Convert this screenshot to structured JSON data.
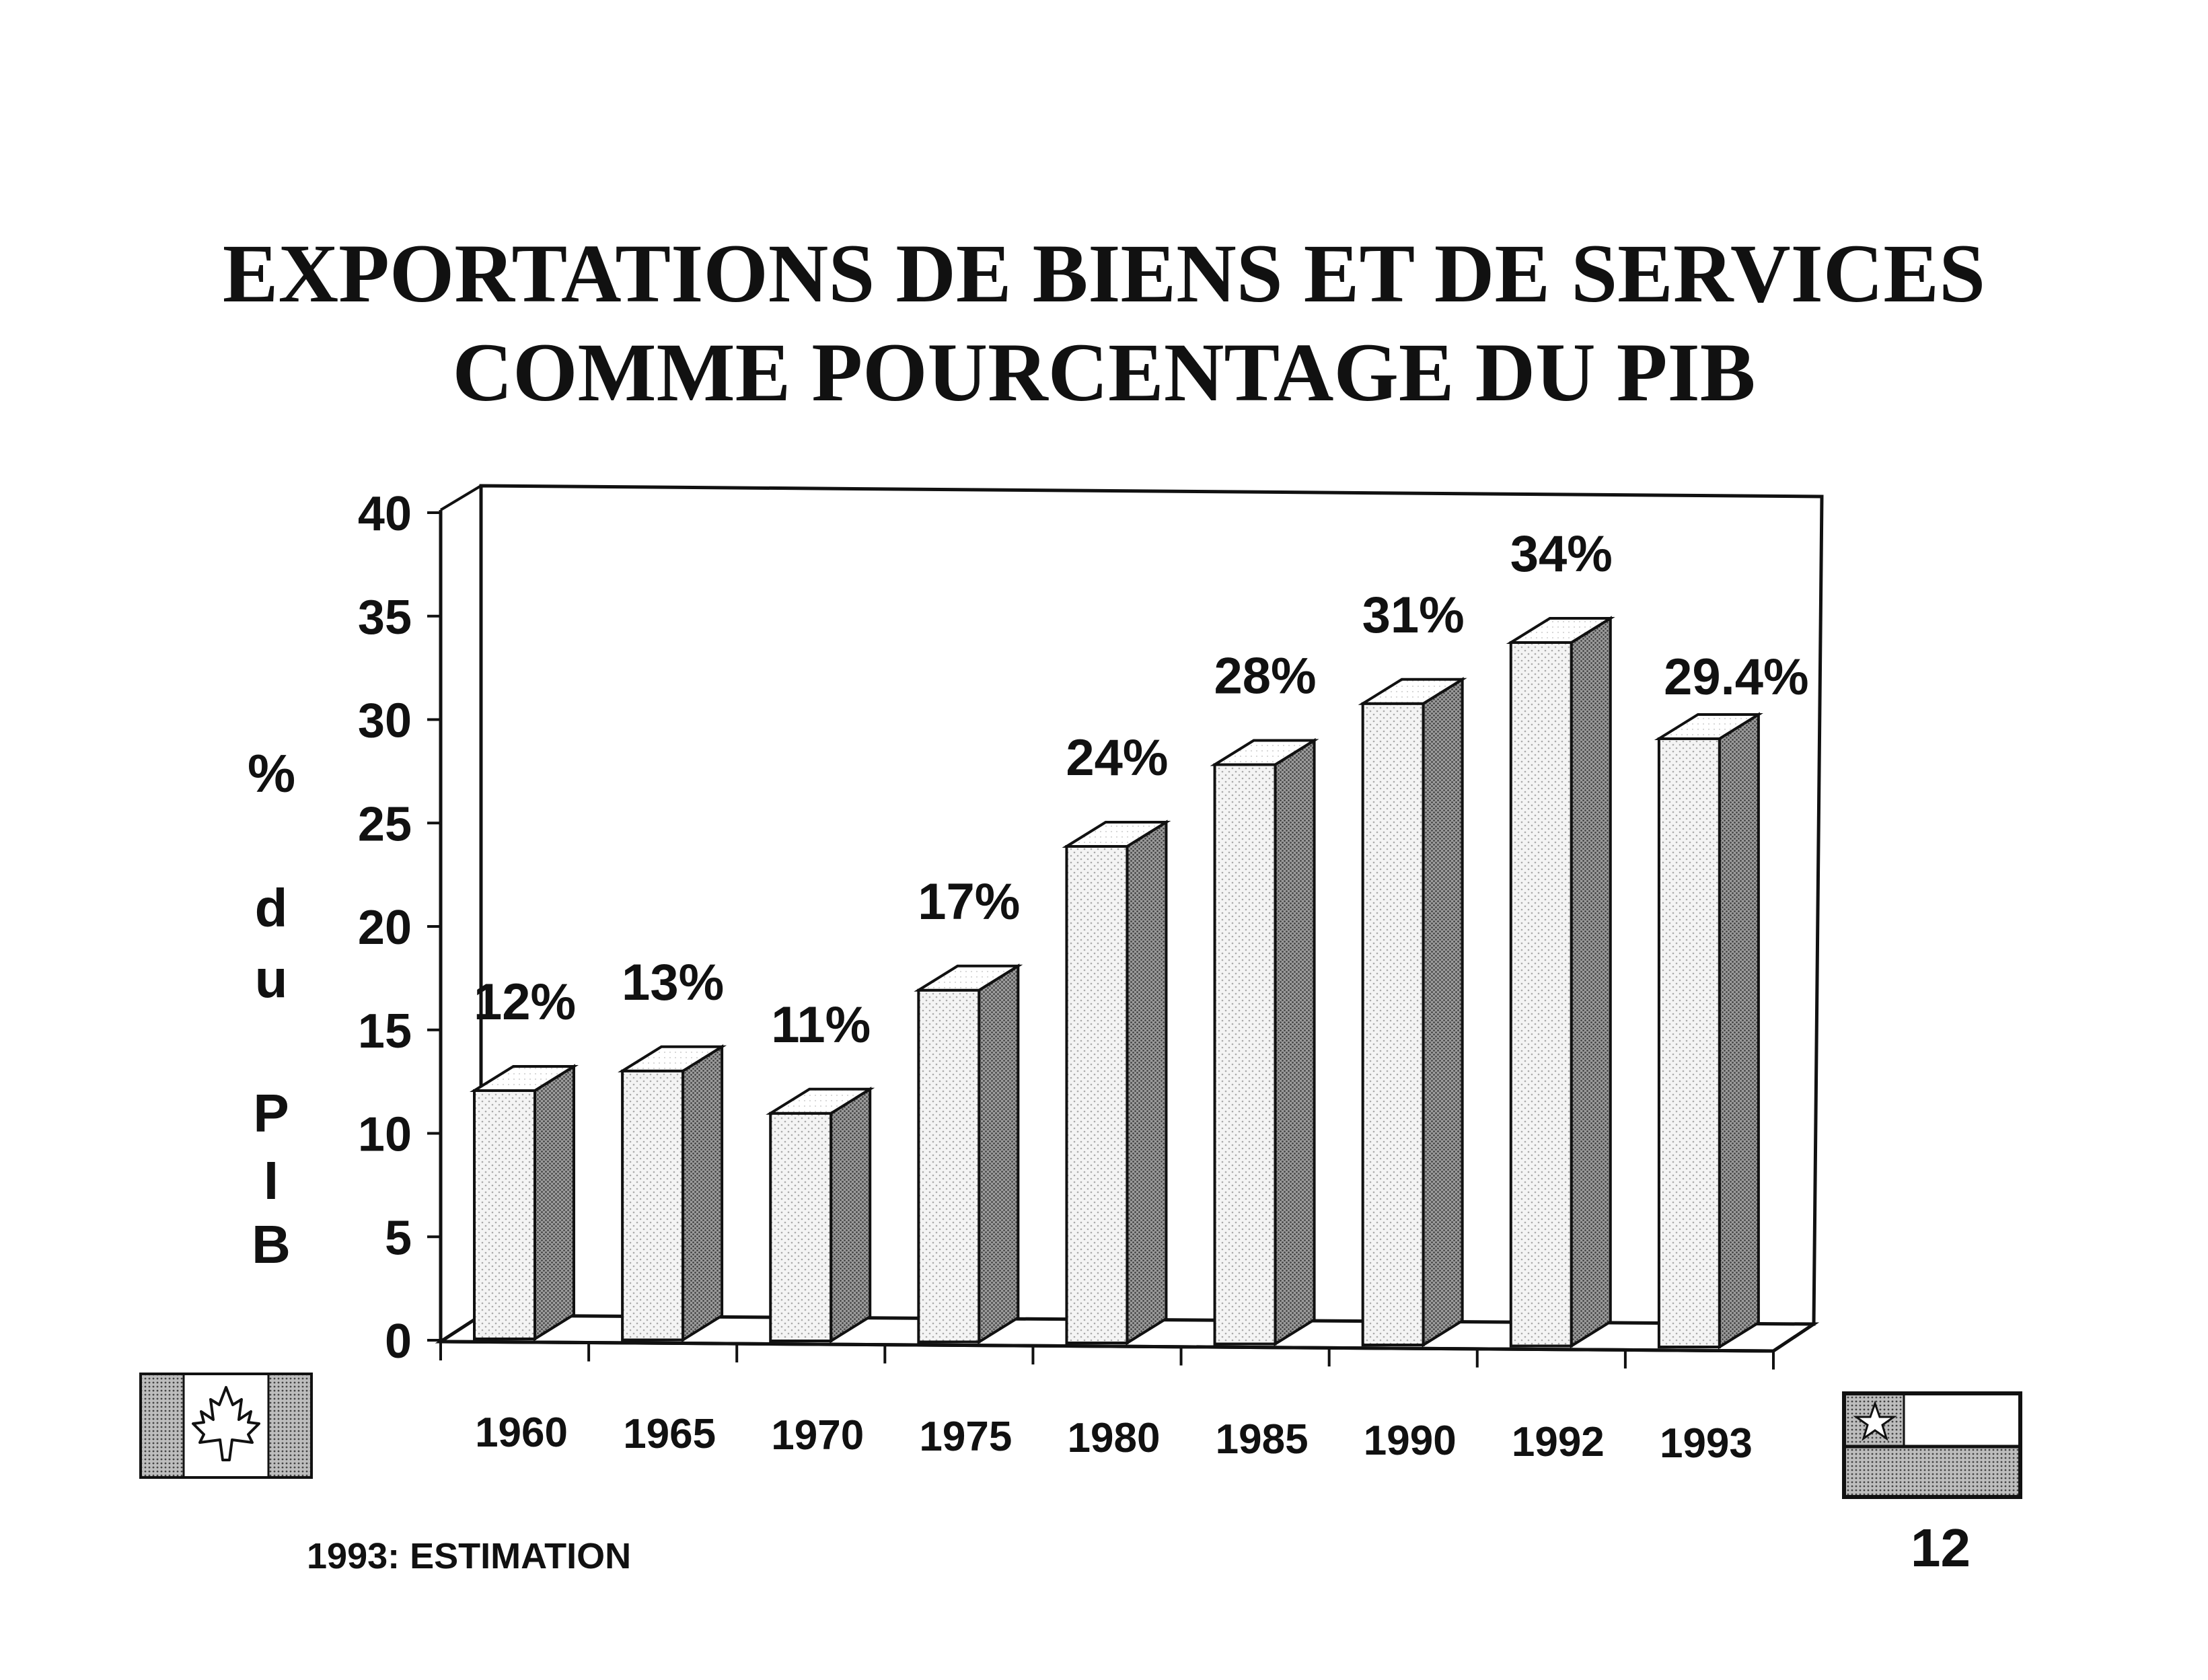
{
  "title": {
    "line1": "EXPORTATIONS DE BIENS ET DE SERVICES",
    "line2": "COMME POURCENTAGE DU PIB"
  },
  "ylabel_letters": [
    "%",
    "d",
    "u",
    "P",
    "I",
    "B"
  ],
  "footnote": "1993: ESTIMATION",
  "page_number": "12",
  "flags": {
    "left": "canada-flag-icon",
    "right": "chile-flag-icon"
  },
  "chart_data": {
    "type": "bar",
    "categories": [
      "1960",
      "1965",
      "1970",
      "1975",
      "1980",
      "1985",
      "1990",
      "1992",
      "1993"
    ],
    "values": [
      12,
      13,
      11,
      17,
      24,
      28,
      31,
      34,
      29.4
    ],
    "data_labels": [
      "12%",
      "13%",
      "11%",
      "17%",
      "24%",
      "28%",
      "31%",
      "34%",
      "29.4%"
    ],
    "yticks": [
      "0",
      "5",
      "10",
      "15",
      "20",
      "25",
      "30",
      "35",
      "40"
    ],
    "ylim": [
      0,
      40
    ],
    "title": "EXPORTATIONS DE BIENS ET DE SERVICES COMME POURCENTAGE DU PIB",
    "ylabel": "% du PIB",
    "xlabel": "",
    "grid": false,
    "style": "3d"
  }
}
